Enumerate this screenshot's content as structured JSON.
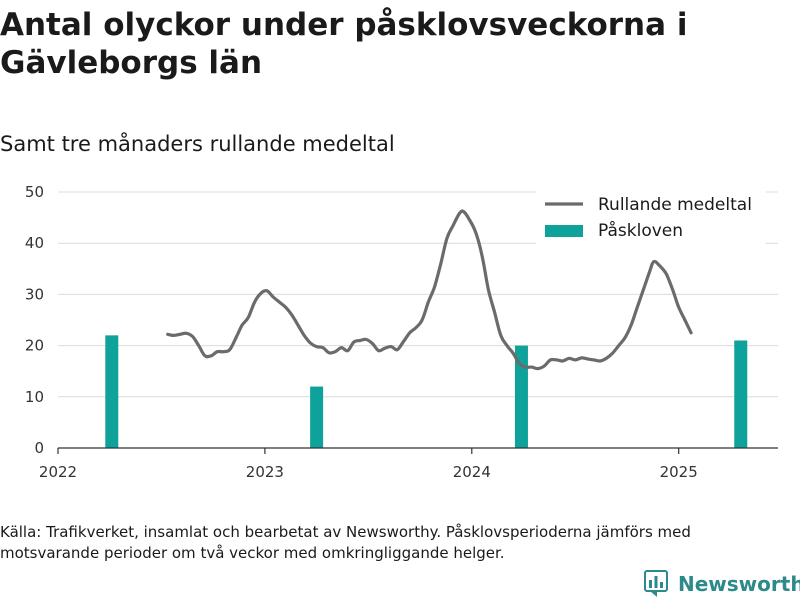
{
  "title": "Antal olyckor under påsklovsveckorna i Gävleborgs län",
  "subtitle": "Samt tre månaders rullande medeltal",
  "source": "Källa: Trafikverket, insamlat och bearbetat av Newsworthy. Påsklovsperioderna jämförs med motsvarande perioder om två veckor med omkringliggande helger.",
  "brand": {
    "name": "Newsworthy",
    "icon": "newsworthy-logo-icon",
    "color": "#2d8a8a"
  },
  "chart_data": {
    "type": "bar+line",
    "xlim": [
      2022.0,
      2025.48
    ],
    "ylim": [
      0,
      50
    ],
    "yticks": [
      0,
      10,
      20,
      30,
      40,
      50
    ],
    "xticks": [
      {
        "value": 2022,
        "label": "2022"
      },
      {
        "value": 2023,
        "label": "2023"
      },
      {
        "value": 2024,
        "label": "2024"
      },
      {
        "value": 2025,
        "label": "2025"
      }
    ],
    "grid": "horizontal",
    "legend": {
      "placement": "top-right"
    },
    "series": [
      {
        "name": "Rullande medeltal",
        "kind": "line",
        "color": "#6b6b6b",
        "points": [
          [
            2022.53,
            22.2
          ],
          [
            2022.56,
            22.0
          ],
          [
            2022.59,
            22.2
          ],
          [
            2022.62,
            22.4
          ],
          [
            2022.65,
            21.8
          ],
          [
            2022.68,
            20.0
          ],
          [
            2022.71,
            18.0
          ],
          [
            2022.74,
            18.0
          ],
          [
            2022.77,
            18.8
          ],
          [
            2022.8,
            18.8
          ],
          [
            2022.83,
            19.2
          ],
          [
            2022.86,
            21.5
          ],
          [
            2022.89,
            24.0
          ],
          [
            2022.92,
            25.5
          ],
          [
            2022.95,
            28.5
          ],
          [
            2022.98,
            30.2
          ],
          [
            2023.01,
            30.7
          ],
          [
            2023.04,
            29.5
          ],
          [
            2023.07,
            28.5
          ],
          [
            2023.1,
            27.5
          ],
          [
            2023.13,
            26.0
          ],
          [
            2023.16,
            24.0
          ],
          [
            2023.19,
            22.0
          ],
          [
            2023.22,
            20.5
          ],
          [
            2023.25,
            19.8
          ],
          [
            2023.28,
            19.6
          ],
          [
            2023.31,
            18.6
          ],
          [
            2023.34,
            18.8
          ],
          [
            2023.37,
            19.6
          ],
          [
            2023.4,
            19.0
          ],
          [
            2023.43,
            20.7
          ],
          [
            2023.46,
            21.0
          ],
          [
            2023.49,
            21.2
          ],
          [
            2023.52,
            20.4
          ],
          [
            2023.55,
            19.0
          ],
          [
            2023.58,
            19.5
          ],
          [
            2023.61,
            19.8
          ],
          [
            2023.64,
            19.2
          ],
          [
            2023.67,
            20.8
          ],
          [
            2023.7,
            22.5
          ],
          [
            2023.73,
            23.5
          ],
          [
            2023.76,
            25.0
          ],
          [
            2023.79,
            28.5
          ],
          [
            2023.82,
            31.5
          ],
          [
            2023.85,
            36.0
          ],
          [
            2023.88,
            41.0
          ],
          [
            2023.91,
            43.5
          ],
          [
            2023.94,
            45.8
          ],
          [
            2023.96,
            46.2
          ],
          [
            2023.99,
            44.5
          ],
          [
            2024.02,
            42.0
          ],
          [
            2024.05,
            37.5
          ],
          [
            2024.08,
            31.0
          ],
          [
            2024.11,
            26.5
          ],
          [
            2024.14,
            22.0
          ],
          [
            2024.17,
            20.0
          ],
          [
            2024.2,
            18.5
          ],
          [
            2024.23,
            16.5
          ],
          [
            2024.26,
            15.8
          ],
          [
            2024.29,
            15.8
          ],
          [
            2024.32,
            15.5
          ],
          [
            2024.35,
            16.0
          ],
          [
            2024.38,
            17.2
          ],
          [
            2024.41,
            17.2
          ],
          [
            2024.44,
            17.0
          ],
          [
            2024.47,
            17.5
          ],
          [
            2024.5,
            17.2
          ],
          [
            2024.53,
            17.6
          ],
          [
            2024.56,
            17.4
          ],
          [
            2024.59,
            17.2
          ],
          [
            2024.62,
            17.0
          ],
          [
            2024.65,
            17.5
          ],
          [
            2024.68,
            18.5
          ],
          [
            2024.71,
            20.0
          ],
          [
            2024.74,
            21.5
          ],
          [
            2024.77,
            24.0
          ],
          [
            2024.8,
            27.5
          ],
          [
            2024.83,
            31.0
          ],
          [
            2024.86,
            34.5
          ],
          [
            2024.88,
            36.4
          ],
          [
            2024.91,
            35.5
          ],
          [
            2024.94,
            34.0
          ],
          [
            2024.97,
            31.0
          ],
          [
            2025.0,
            27.5
          ],
          [
            2025.03,
            25.0
          ],
          [
            2025.06,
            22.5
          ]
        ]
      },
      {
        "name": "Påskloven",
        "kind": "bar",
        "color": "#0ea29a",
        "bars": [
          {
            "x": 2022.26,
            "value": 22
          },
          {
            "x": 2023.25,
            "value": 12
          },
          {
            "x": 2024.24,
            "value": 20
          },
          {
            "x": 2025.3,
            "value": 21
          }
        ]
      }
    ]
  }
}
